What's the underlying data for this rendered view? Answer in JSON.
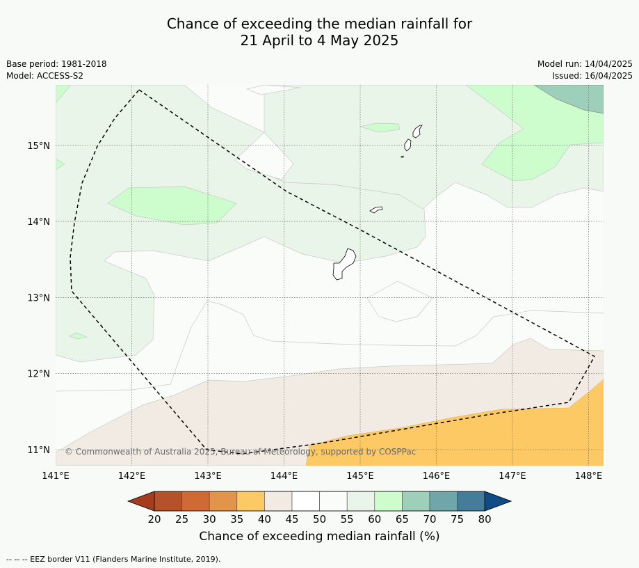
{
  "title_line1": "Chance of exceeding the median rainfall for",
  "title_line2": "21 April to 4 May 2025",
  "base_period": "Base period: 1981-2018",
  "model": "Model: ACCESS-S2",
  "model_run": "Model run: 14/04/2025",
  "issued": "Issued: 16/04/2025",
  "copyright": "© Commonwealth of Australia 2025, Bureau of Meteorology, supported by COSPPac",
  "colorbar_label": "Chance of exceeding median rainfall (%)",
  "footnote": "--  --  -- EEZ border V11 (Flanders Marine Institute, 2019).",
  "lon_labels": [
    "141°E",
    "142°E",
    "143°E",
    "144°E",
    "145°E",
    "146°E",
    "147°E",
    "148°E"
  ],
  "lat_labels": [
    "15°N",
    "14°N",
    "13°N",
    "12°N",
    "11°N"
  ],
  "colorbar_ticks": [
    "20",
    "25",
    "30",
    "35",
    "40",
    "45",
    "50",
    "55",
    "60",
    "65",
    "70",
    "75",
    "80"
  ],
  "colorbar_colors": [
    "#a63c1e",
    "#b5522a",
    "#cf6a35",
    "#e29548",
    "#fdc964",
    "#f1ebe4",
    "#ffffff",
    "#fafcfa",
    "#eaf5ea",
    "#cdfccd",
    "#9ecfbb",
    "#6ea6a9",
    "#437d9a",
    "#0f4b85"
  ],
  "map": {
    "lon_range": [
      141,
      148.2
    ],
    "lat_range": [
      10.8,
      15.8
    ],
    "background_color": "#fafcfa"
  }
}
